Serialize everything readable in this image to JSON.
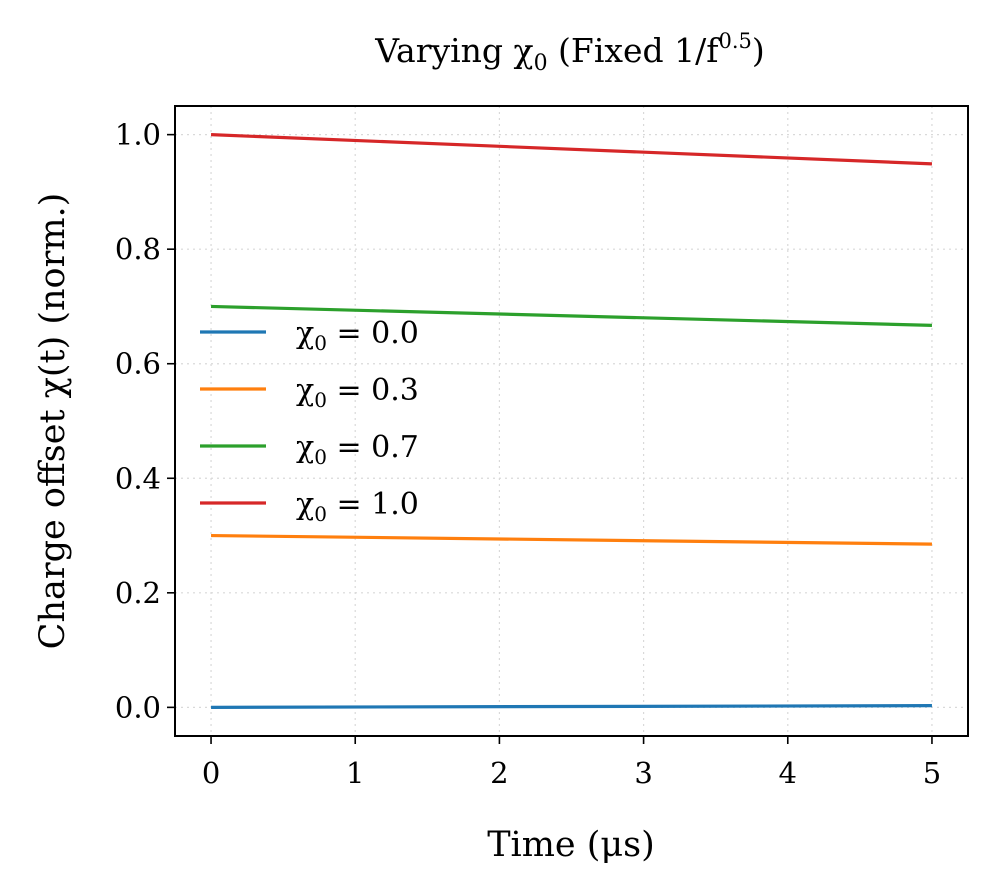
{
  "chart_data": {
    "type": "line",
    "title": "Varying χ₀ (Fixed 1/f^0.5)",
    "title_base": "Varying χ",
    "title_sub": "0",
    "title_mid": " (Fixed 1/f",
    "title_sup": "0.5",
    "title_end": ")",
    "xlabel": "Time (μs)",
    "ylabel": "Charge offset χ(t) (norm.)",
    "xlim": [
      -0.25,
      5.25
    ],
    "ylim": [
      -0.05,
      1.05
    ],
    "xticks": [
      0,
      1,
      2,
      3,
      4,
      5
    ],
    "yticks": [
      0.0,
      0.2,
      0.4,
      0.6,
      0.8,
      1.0
    ],
    "xtick_labels": [
      "0",
      "1",
      "2",
      "3",
      "4",
      "5"
    ],
    "ytick_labels": [
      "0.0",
      "0.2",
      "0.4",
      "0.6",
      "0.8",
      "1.0"
    ],
    "grid": true,
    "legend_position": "center-left",
    "series": [
      {
        "name": "χ₀ = 0.0",
        "value_label": "0.0",
        "color": "#1f77b4",
        "x": [
          0,
          5
        ],
        "y": [
          0.0,
          0.003
        ]
      },
      {
        "name": "χ₀ = 0.3",
        "value_label": "0.3",
        "color": "#ff7f0e",
        "x": [
          0,
          5
        ],
        "y": [
          0.3,
          0.285
        ]
      },
      {
        "name": "χ₀ = 0.7",
        "value_label": "0.7",
        "color": "#2ca02c",
        "x": [
          0,
          5
        ],
        "y": [
          0.7,
          0.667
        ]
      },
      {
        "name": "χ₀ = 1.0",
        "value_label": "1.0",
        "color": "#d62728",
        "x": [
          0,
          5
        ],
        "y": [
          1.0,
          0.949
        ]
      }
    ]
  }
}
